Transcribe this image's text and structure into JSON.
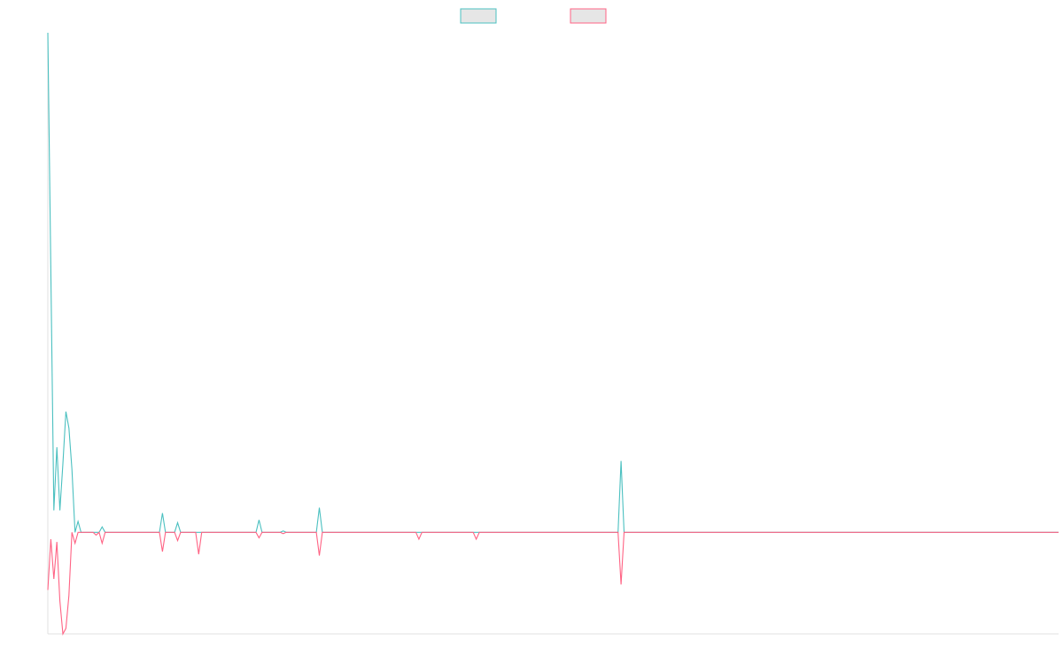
{
  "chart_data": {
    "type": "line",
    "title": "",
    "xlabel": "",
    "ylabel": "",
    "x_range": [
      0,
      335
    ],
    "ylim": [
      -3.7,
      18.2
    ],
    "grid": false,
    "legend_placement": "top-center",
    "series": [
      {
        "name": "",
        "color": "#4bc0c0",
        "legend_fill": "#e6e6e6",
        "values": [
          [
            0,
            18.2
          ],
          [
            2,
            0.8
          ],
          [
            3,
            3.1
          ],
          [
            4,
            0.8
          ],
          [
            5,
            2.5
          ],
          [
            6,
            4.4
          ],
          [
            7,
            3.8
          ],
          [
            8,
            2.3
          ],
          [
            9,
            0
          ],
          [
            10,
            0.4
          ],
          [
            11,
            0
          ],
          [
            15,
            0
          ],
          [
            16,
            0
          ],
          [
            17,
            0
          ],
          [
            18,
            0.2
          ],
          [
            19,
            0
          ],
          [
            20,
            0
          ],
          [
            37,
            0
          ],
          [
            38,
            0.7
          ],
          [
            39,
            0
          ],
          [
            42,
            0
          ],
          [
            43,
            0.35
          ],
          [
            44,
            0
          ],
          [
            49,
            0
          ],
          [
            50,
            0
          ],
          [
            51,
            0
          ],
          [
            69,
            0
          ],
          [
            70,
            0.45
          ],
          [
            71,
            0
          ],
          [
            77,
            0
          ],
          [
            78,
            0.05
          ],
          [
            79,
            0
          ],
          [
            89,
            0
          ],
          [
            90,
            0.9
          ],
          [
            91,
            0
          ],
          [
            189,
            0
          ],
          [
            190,
            2.6
          ],
          [
            191,
            0
          ],
          [
            335,
            0
          ]
        ]
      },
      {
        "name": "",
        "color": "#ff6384",
        "legend_fill": "#e6e6e6",
        "values": [
          [
            0,
            -2.1
          ],
          [
            1,
            -0.25
          ],
          [
            2,
            -1.7
          ],
          [
            3,
            -0.35
          ],
          [
            4,
            -2.5
          ],
          [
            5,
            -3.7
          ],
          [
            6,
            -3.5
          ],
          [
            7,
            -2.3
          ],
          [
            8,
            0
          ],
          [
            9,
            -0.4
          ],
          [
            10,
            0
          ],
          [
            15,
            0
          ],
          [
            16,
            -0.1
          ],
          [
            17,
            0
          ],
          [
            18,
            -0.4
          ],
          [
            19,
            0
          ],
          [
            20,
            0
          ],
          [
            37,
            0
          ],
          [
            38,
            -0.7
          ],
          [
            39,
            0
          ],
          [
            42,
            0
          ],
          [
            43,
            -0.3
          ],
          [
            44,
            0
          ],
          [
            49,
            0
          ],
          [
            50,
            -0.8
          ],
          [
            51,
            0
          ],
          [
            69,
            0
          ],
          [
            70,
            -0.2
          ],
          [
            71,
            0
          ],
          [
            77,
            0
          ],
          [
            78,
            -0.05
          ],
          [
            79,
            0
          ],
          [
            89,
            0
          ],
          [
            90,
            -0.85
          ],
          [
            91,
            0
          ],
          [
            122,
            0
          ],
          [
            123,
            -0.25
          ],
          [
            124,
            0
          ],
          [
            141,
            0
          ],
          [
            142,
            -0.25
          ],
          [
            143,
            0
          ],
          [
            189,
            0
          ],
          [
            190,
            -1.9
          ],
          [
            191,
            0
          ],
          [
            335,
            0
          ]
        ]
      }
    ]
  }
}
